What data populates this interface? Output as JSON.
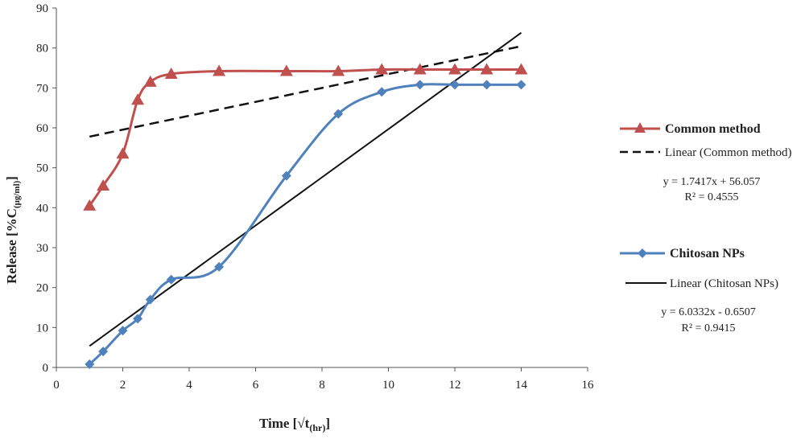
{
  "chart_data": {
    "type": "line",
    "title": "",
    "xlabel": "Time [√t",
    "xlabel_sub": "(hr)",
    "xlabel_end": "]",
    "ylabel": "Release [%C",
    "ylabel_sub": "(μg/ml)",
    "ylabel_end": "]",
    "xlim": [
      0,
      16
    ],
    "ylim": [
      0,
      90
    ],
    "xticks": [
      0,
      2,
      4,
      6,
      8,
      10,
      12,
      14,
      16
    ],
    "yticks": [
      0,
      10,
      20,
      30,
      40,
      50,
      60,
      70,
      80,
      90
    ],
    "grid": false,
    "legend_position": "right",
    "series": [
      {
        "name": "Common method",
        "color": "#c0504d",
        "marker": "triangle",
        "x": [
          1,
          1.41,
          2,
          2.45,
          2.83,
          3.46,
          4.9,
          6.93,
          8.49,
          9.8,
          10.95,
          12,
          12.96,
          14
        ],
        "y": [
          40.5,
          45.5,
          53.5,
          67,
          71.5,
          73.5,
          74.2,
          74.2,
          74.2,
          74.6,
          74.6,
          74.6,
          74.6,
          74.6
        ]
      },
      {
        "name": "Chitosan NPs",
        "color": "#4f81bd",
        "marker": "diamond",
        "x": [
          1,
          1.41,
          2,
          2.45,
          2.83,
          3.46,
          4.9,
          6.93,
          8.49,
          9.8,
          10.95,
          12,
          12.96,
          14
        ],
        "y": [
          0.8,
          4,
          9.2,
          12.2,
          17,
          22,
          25.2,
          48,
          63.5,
          69,
          70.8,
          70.8,
          70.8,
          70.8
        ]
      }
    ],
    "trendlines": [
      {
        "label": "Linear (Common method)",
        "style": "dashed",
        "slope": 1.7417,
        "intercept": 56.057,
        "x_range": [
          1,
          14
        ],
        "equation": "y = 1.7417x + 56.057",
        "r2": "R² = 0.4555"
      },
      {
        "label": "Linear (Chitosan NPs)",
        "style": "solid",
        "slope": 6.0332,
        "intercept": -0.6507,
        "x_range": [
          1,
          14
        ],
        "equation": "y = 6.0332x - 0.6507",
        "r2": "R² = 0.9415"
      }
    ]
  }
}
